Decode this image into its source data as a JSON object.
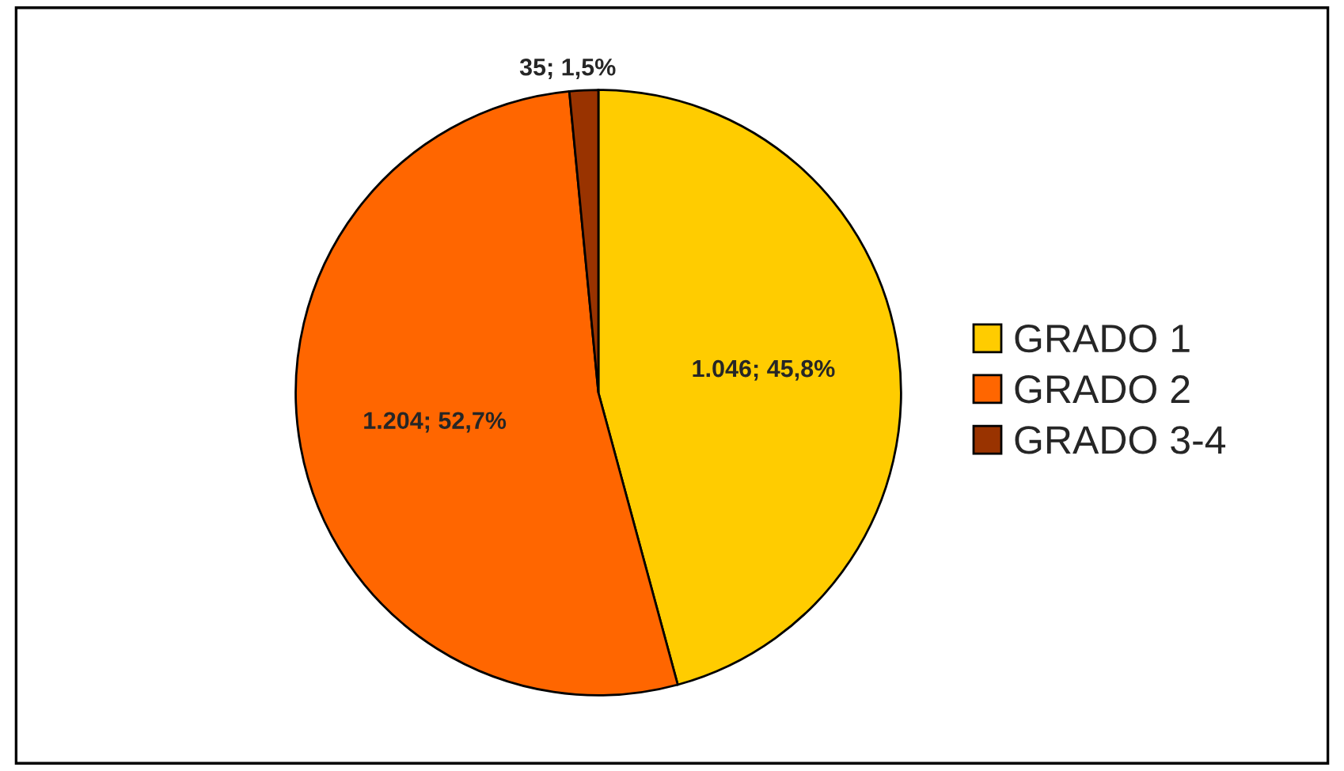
{
  "chart_data": {
    "type": "pie",
    "categories": [
      "GRADO 1",
      "GRADO 2",
      "GRADO 3-4"
    ],
    "values": [
      1046,
      1204,
      35
    ],
    "value_labels": [
      "1.046; 45,8%",
      "1.204; 52,7%",
      "35; 1,5%"
    ],
    "colors": [
      "#ffcc00",
      "#ff6600",
      "#993300"
    ],
    "legend": "right"
  }
}
